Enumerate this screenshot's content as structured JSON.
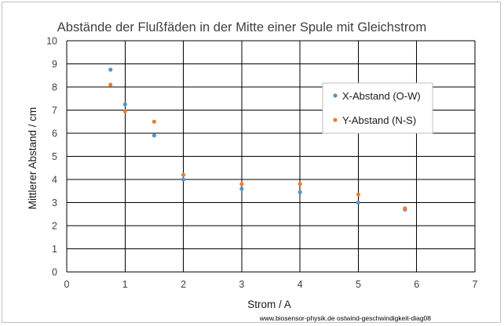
{
  "chart_data": {
    "type": "scatter",
    "title": "Abstände der Flußfäden  in der Mitte einer Spule mit Gleichstrom",
    "xlabel": "Strom / A",
    "ylabel": "Mittlerer Abstand / cm",
    "xlim": [
      0,
      7
    ],
    "ylim": [
      0,
      10
    ],
    "xticks": [
      0,
      1,
      2,
      3,
      4,
      5,
      6,
      7
    ],
    "yticks": [
      0,
      1,
      2,
      3,
      4,
      5,
      6,
      7,
      8,
      9,
      10
    ],
    "grid": true,
    "legend_position": "right",
    "series": [
      {
        "name": "X-Abstand (O-W)",
        "color": "#4f97d1",
        "points": [
          {
            "x": 0.75,
            "y": 8.75
          },
          {
            "x": 1.0,
            "y": 7.25
          },
          {
            "x": 1.5,
            "y": 5.9
          },
          {
            "x": 2.0,
            "y": 4.0
          },
          {
            "x": 3.0,
            "y": 3.6
          },
          {
            "x": 4.0,
            "y": 3.45
          },
          {
            "x": 5.0,
            "y": 3.0
          },
          {
            "x": 5.8,
            "y": 2.7
          }
        ]
      },
      {
        "name": "Y-Abstand (N-S)",
        "color": "#ed7d31",
        "points": [
          {
            "x": 0.75,
            "y": 8.1
          },
          {
            "x": 1.0,
            "y": 6.95
          },
          {
            "x": 1.5,
            "y": 6.5
          },
          {
            "x": 2.0,
            "y": 4.2
          },
          {
            "x": 3.0,
            "y": 3.8
          },
          {
            "x": 4.0,
            "y": 3.8
          },
          {
            "x": 5.0,
            "y": 3.35
          },
          {
            "x": 5.8,
            "y": 2.75
          }
        ]
      }
    ]
  },
  "footer": "www.biosensor-physik.de  ostwind-geschwindigkeit-diag08"
}
